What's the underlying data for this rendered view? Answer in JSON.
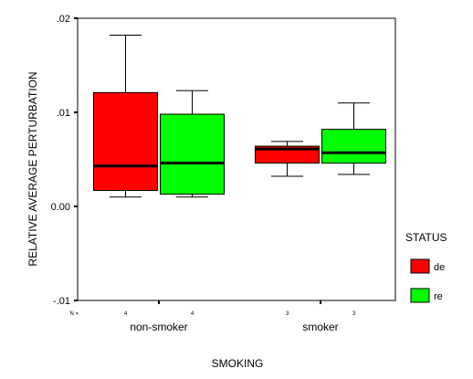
{
  "chart_data": {
    "type": "boxplot",
    "title": "",
    "xlabel": "SMOKING",
    "ylabel": "RELATIVE AVERAGE PERTURBATION",
    "ylim": [
      -0.01,
      0.02
    ],
    "yticks": [
      {
        "value": 0.02,
        "label": ".02"
      },
      {
        "value": 0.01,
        "label": ".01"
      },
      {
        "value": 0.0,
        "label": "0.00"
      },
      {
        "value": -0.01,
        "label": "-.01"
      }
    ],
    "n_prefix": "N =",
    "categories": [
      "non-smoker",
      "smoker"
    ],
    "legend": {
      "title": "STATUS",
      "position": "right"
    },
    "series": [
      {
        "name": "de",
        "color": "#ff0000",
        "boxes": [
          {
            "category": "non-smoker",
            "n": "4",
            "min": 0.001,
            "q1": 0.0017,
            "median": 0.0043,
            "q3": 0.0121,
            "max": 0.0182
          },
          {
            "category": "smoker",
            "n": "3",
            "min": 0.0032,
            "q1": 0.0046,
            "median": 0.0061,
            "q3": 0.0064,
            "max": 0.0069
          }
        ]
      },
      {
        "name": "re",
        "color": "#00ff00",
        "boxes": [
          {
            "category": "non-smoker",
            "n": "4",
            "min": 0.001,
            "q1": 0.0013,
            "median": 0.0046,
            "q3": 0.0098,
            "max": 0.0123
          },
          {
            "category": "smoker",
            "n": "3",
            "min": 0.0034,
            "q1": 0.0046,
            "median": 0.0057,
            "q3": 0.0082,
            "max": 0.011
          }
        ]
      }
    ]
  }
}
